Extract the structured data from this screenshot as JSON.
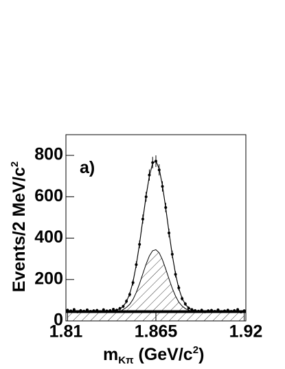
{
  "chart_data": {
    "type": "scatter-fit",
    "annotation": "a)",
    "x_label": {
      "main": "m",
      "sub": "Kπ",
      "rest": " (GeV/c",
      "sup": "2",
      "end": ")"
    },
    "y_label": {
      "main": "Events/2 MeV/c",
      "sup": "2"
    },
    "xlim": [
      1.81,
      1.92
    ],
    "ylim": [
      0,
      900
    ],
    "xticks": [
      1.81,
      1.865,
      1.92
    ],
    "yticks": [
      0,
      200,
      400,
      600,
      800
    ],
    "x": [
      1.811,
      1.813,
      1.815,
      1.817,
      1.819,
      1.821,
      1.823,
      1.825,
      1.827,
      1.829,
      1.831,
      1.833,
      1.835,
      1.837,
      1.839,
      1.841,
      1.843,
      1.845,
      1.847,
      1.849,
      1.851,
      1.853,
      1.855,
      1.857,
      1.859,
      1.861,
      1.863,
      1.865,
      1.867,
      1.869,
      1.871,
      1.873,
      1.875,
      1.877,
      1.879,
      1.881,
      1.883,
      1.885,
      1.887,
      1.889,
      1.891,
      1.893,
      1.895,
      1.897,
      1.899,
      1.901,
      1.903,
      1.905,
      1.907,
      1.909,
      1.911,
      1.913,
      1.915,
      1.917,
      1.919
    ],
    "series": [
      {
        "style": "points",
        "color": "#000000",
        "values": [
          52,
          48,
          55,
          44,
          50,
          47,
          53,
          46,
          49,
          51,
          45,
          54,
          48,
          50,
          56,
          52,
          60,
          70,
          95,
          128,
          185,
          272,
          370,
          492,
          600,
          705,
          765,
          772,
          730,
          650,
          548,
          425,
          322,
          225,
          160,
          108,
          82,
          62,
          55,
          50,
          47,
          52,
          44,
          49,
          51,
          46,
          53,
          45,
          48,
          52,
          46,
          50,
          55,
          43,
          49
        ],
        "errors": [
          7,
          7,
          7,
          7,
          7,
          7,
          7,
          7,
          7,
          7,
          7,
          7,
          7,
          7,
          7,
          7,
          8,
          8,
          10,
          11,
          14,
          16,
          19,
          22,
          24,
          27,
          28,
          28,
          27,
          25,
          23,
          21,
          18,
          15,
          13,
          10,
          9,
          8,
          7,
          7,
          7,
          7,
          7,
          7,
          7,
          7,
          7,
          7,
          7,
          7,
          7,
          7,
          7,
          7,
          7
        ]
      },
      {
        "style": "line",
        "color": "#000000",
        "values": [
          48,
          48,
          48,
          48,
          48,
          48,
          48,
          48,
          48,
          48,
          48,
          48,
          48,
          48,
          50,
          53,
          58,
          70,
          93,
          131,
          189,
          270,
          373,
          488,
          603,
          700,
          761,
          773,
          735,
          655,
          546,
          429,
          319,
          227,
          157,
          110,
          80,
          63,
          53,
          50,
          48,
          47,
          47,
          46,
          46,
          46,
          46,
          46,
          46,
          46,
          46,
          46,
          46,
          46,
          46
        ]
      },
      {
        "style": "hatched",
        "color": "#000000",
        "values": [
          45,
          45,
          45,
          45,
          45,
          45,
          45,
          45,
          45,
          45,
          45,
          45,
          45,
          45,
          45,
          45,
          45,
          55,
          65,
          80,
          104,
          137,
          180,
          227,
          274,
          314,
          339,
          344,
          329,
          296,
          251,
          203,
          158,
          120,
          91,
          72,
          59,
          52,
          48,
          45,
          45,
          45,
          45,
          45,
          45,
          45,
          45,
          45,
          45,
          45,
          45,
          45,
          45,
          45,
          45
        ]
      }
    ]
  }
}
